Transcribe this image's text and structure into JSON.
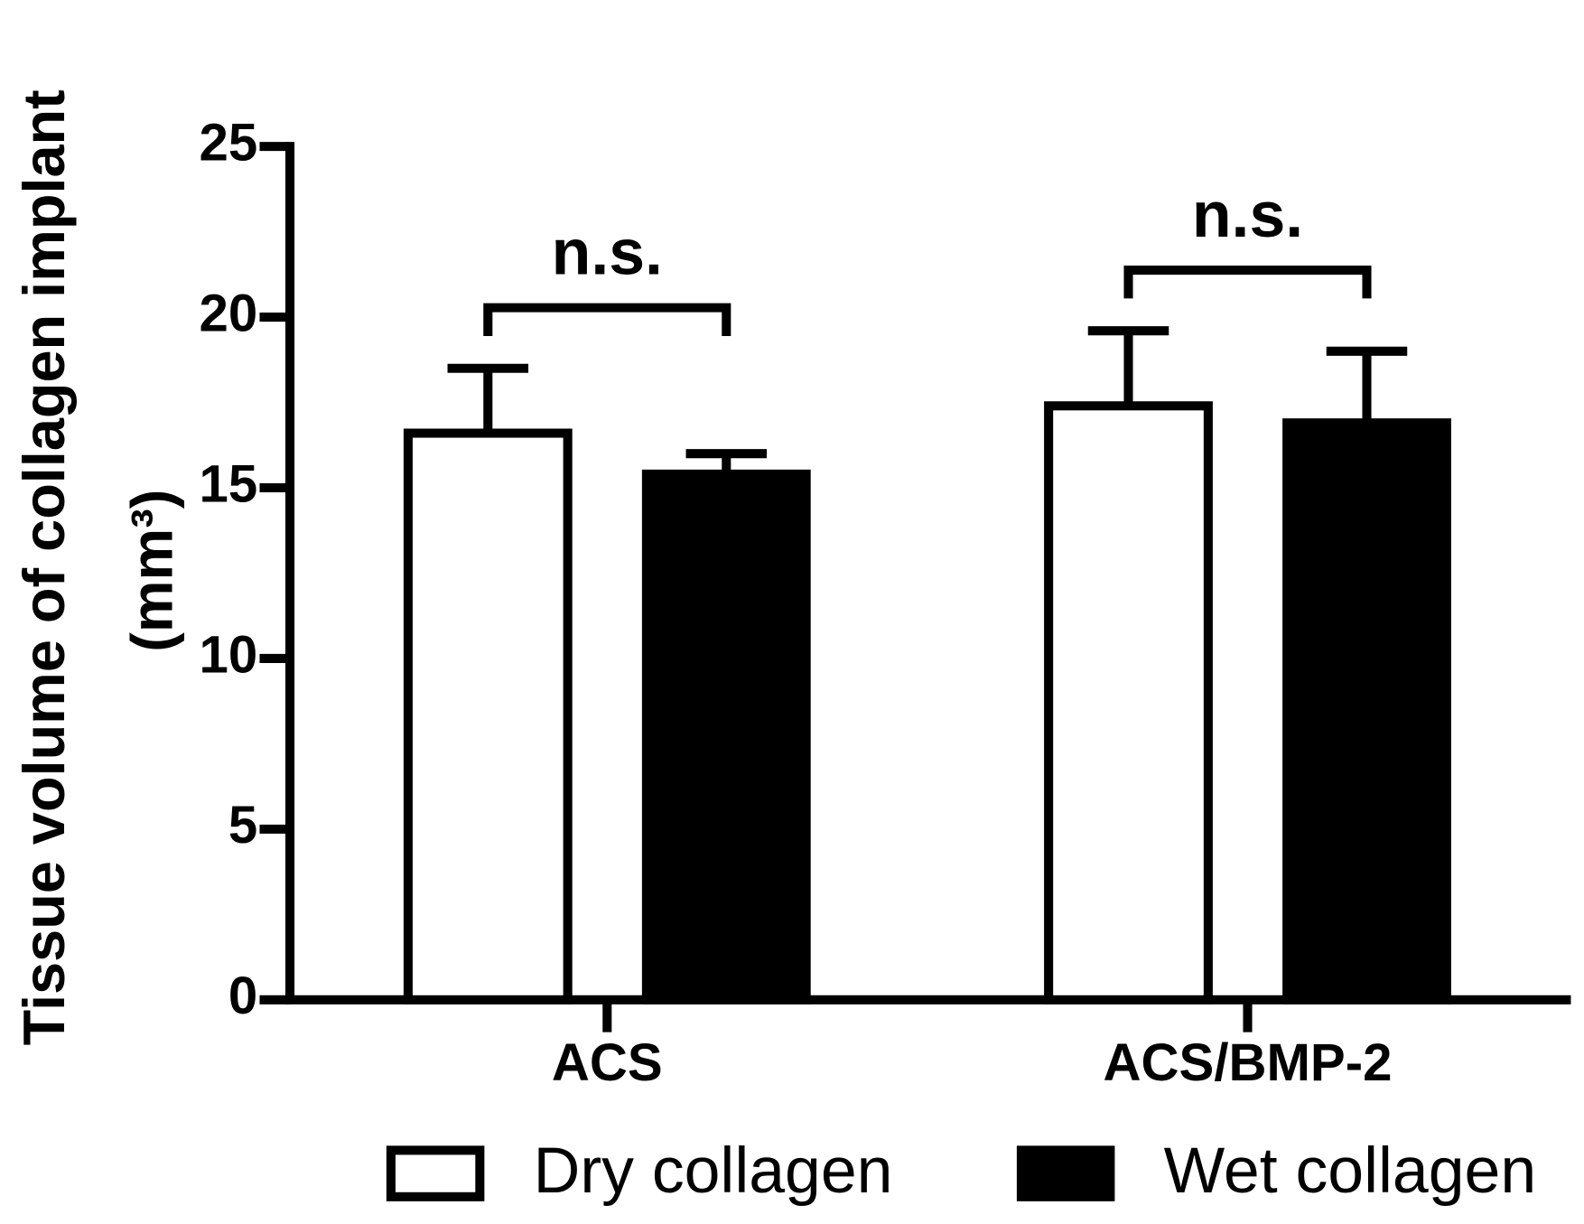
{
  "chart_data": {
    "type": "bar",
    "ylabel": "Tissue volume of collagen implant",
    "ylabel_unit": "(mm³)",
    "categories": [
      "ACS",
      "ACS/BMP-2"
    ],
    "series": [
      {
        "name": "Dry collagen",
        "color": "#ffffff",
        "values": [
          16.6,
          17.4
        ],
        "errors": [
          1.9,
          2.2
        ]
      },
      {
        "name": "Wet collagen",
        "color": "#000000",
        "values": [
          15.4,
          16.9
        ],
        "errors": [
          0.6,
          2.1
        ]
      }
    ],
    "annotations": [
      "n.s.",
      "n.s."
    ],
    "ylim": [
      0,
      25
    ],
    "yticks": [
      0,
      5,
      10,
      15,
      20,
      25
    ],
    "grid": false,
    "legend": "bottom"
  }
}
